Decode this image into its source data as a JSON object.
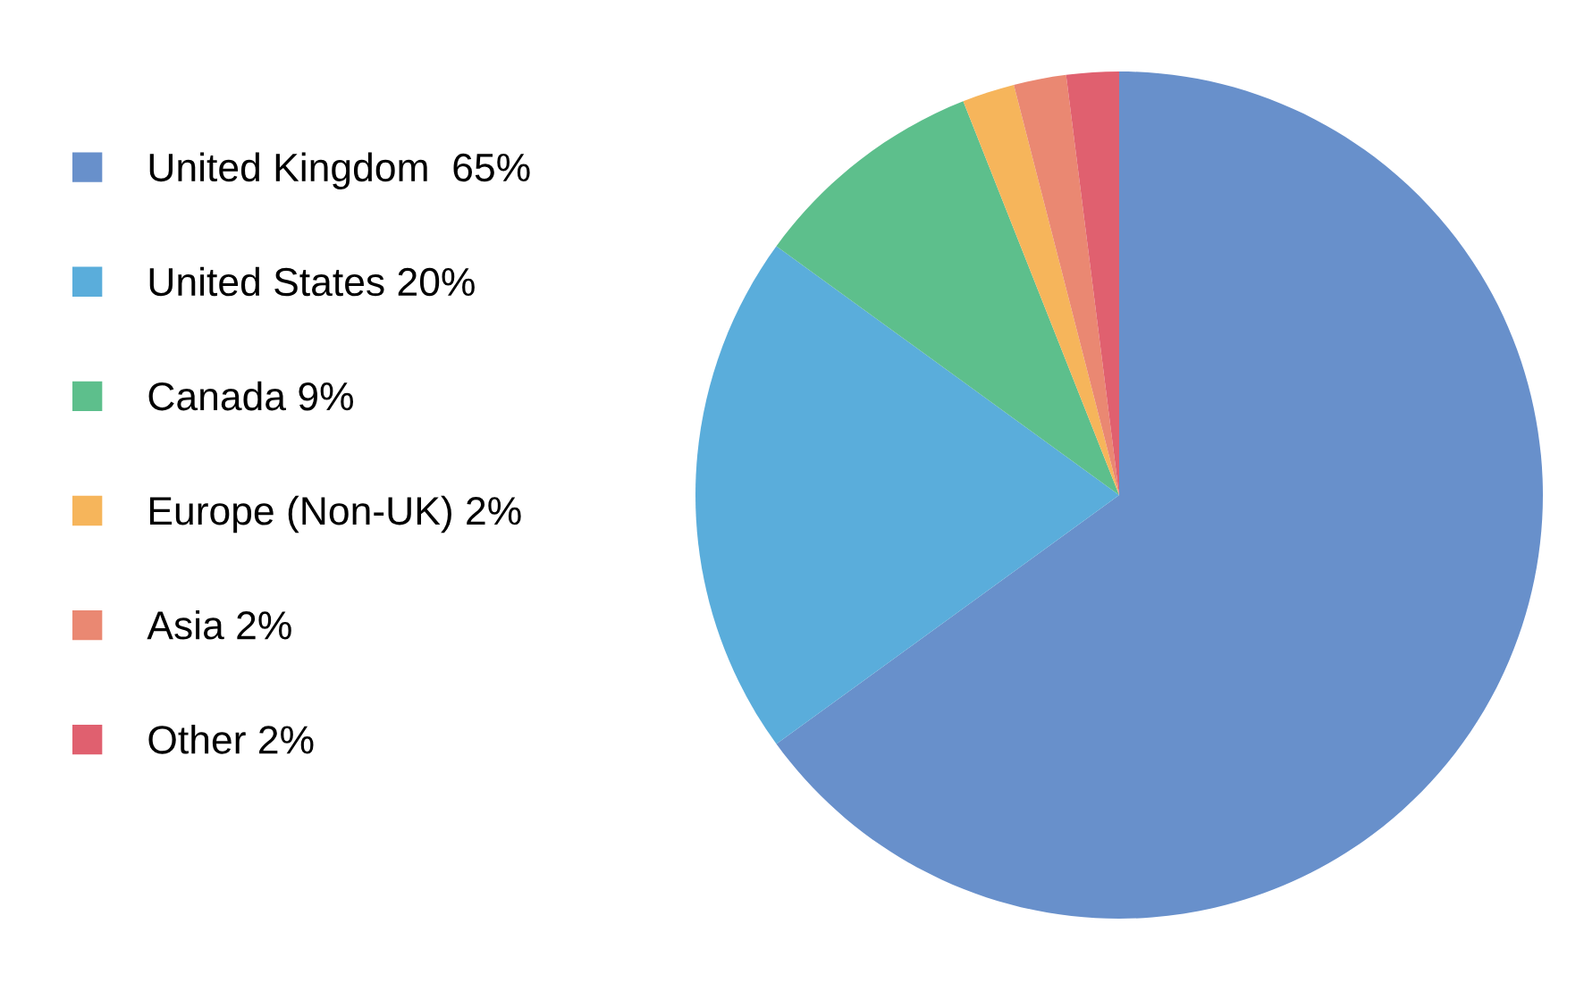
{
  "chart_data": {
    "type": "pie",
    "categories": [
      "United Kingdom  65%",
      "United States 20%",
      "Canada 9%",
      "Europe (Non-UK) 2%",
      "Asia 2%",
      "Other 2%"
    ],
    "values": [
      65,
      20,
      9,
      2,
      2,
      2
    ],
    "colors": [
      "#6890cb",
      "#5aaddb",
      "#5dbf8c",
      "#f6b55b",
      "#ea8872",
      "#e0606f"
    ],
    "legend": "left"
  }
}
